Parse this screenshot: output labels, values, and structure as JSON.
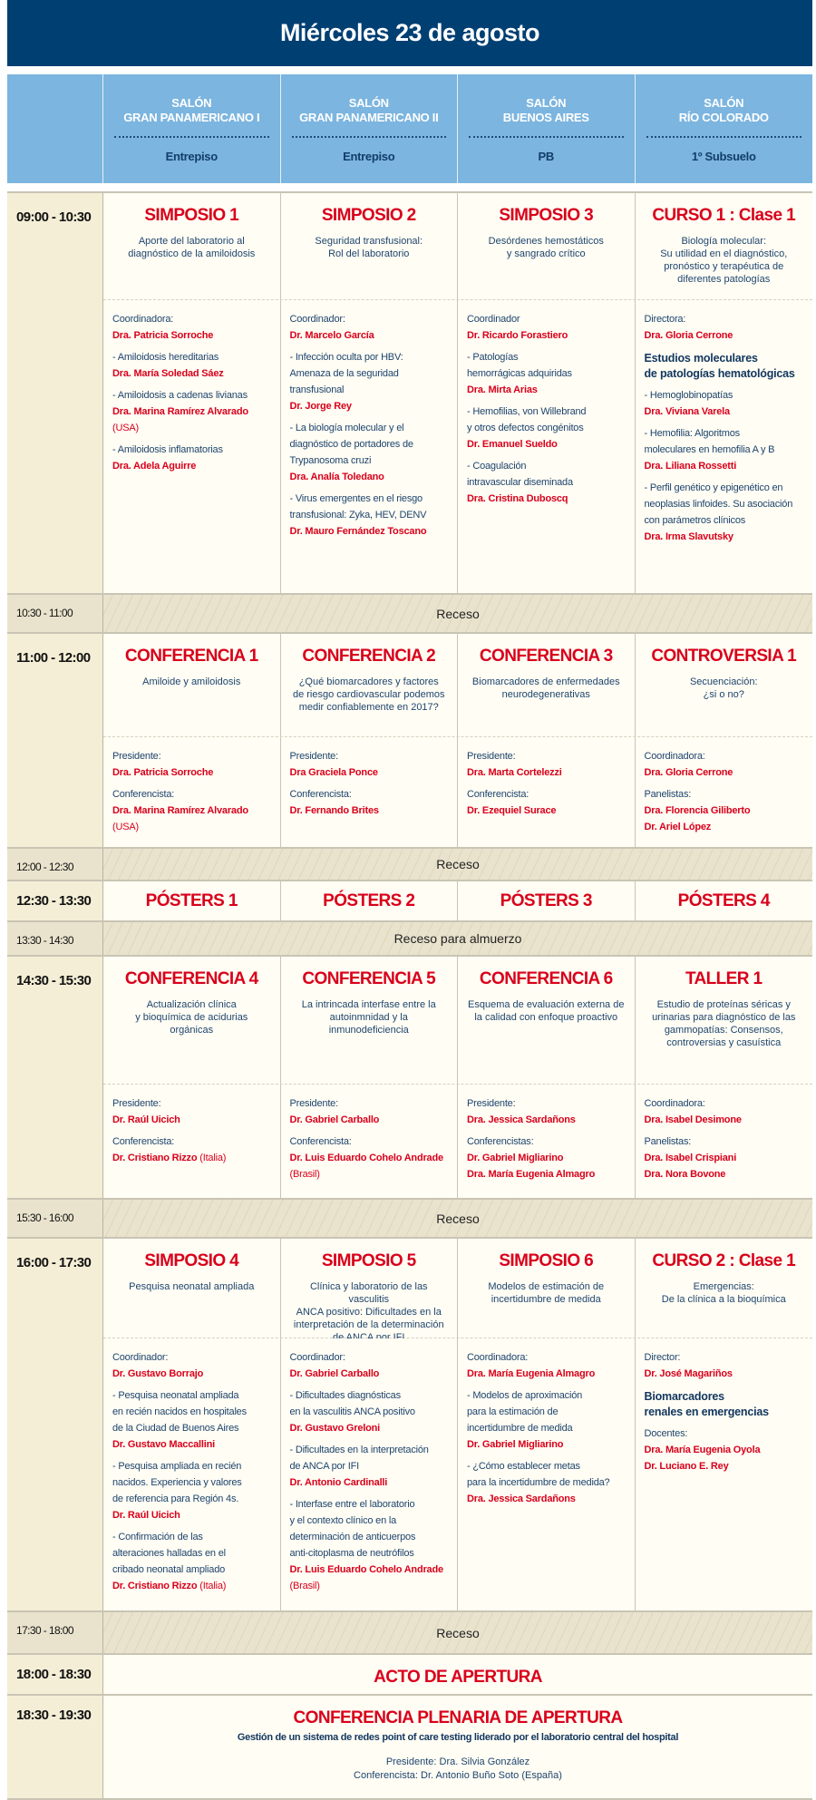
{
  "title": "Miércoles 23 de agosto",
  "rooms": [
    {
      "name": "SALÓN\nGRAN PANAMERICANO I",
      "floor": "Entrepiso"
    },
    {
      "name": "SALÓN\nGRAN PANAMERICANO II",
      "floor": "Entrepiso"
    },
    {
      "name": "SALÓN\nBUENOS AIRES",
      "floor": "PB"
    },
    {
      "name": "SALÓN\nRÍO COLORADO",
      "floor": "1º Subsuelo"
    }
  ],
  "colors": {
    "title_bar": "#003f72",
    "header": "#7cb5df",
    "accent_red": "#d9001b",
    "text_blue": "#1e446d",
    "time_column": "#f4eed6",
    "break": "#e9e3cd"
  },
  "rows": [
    {
      "kind": "session",
      "time": "09:00 - 10:30",
      "cells": [
        {
          "title": "SIMPOSIO 1",
          "desc": "Aporte del laboratorio al\ndiagnóstico de la amiloidosis",
          "items": [
            {
              "type": "role",
              "text": "Coordinadora:"
            },
            {
              "type": "name",
              "text": "Dra. Patricia Sorroche"
            },
            {
              "type": "topic",
              "text": "- Amiloidosis hereditarias"
            },
            {
              "type": "name",
              "text": "Dra. María Soledad Sáez"
            },
            {
              "type": "topic",
              "text": "- Amiloidosis a cadenas livianas"
            },
            {
              "type": "name",
              "text": "Dra. Marina Ramírez Alvarado"
            },
            {
              "type": "country",
              "text": "(USA)"
            },
            {
              "type": "topic",
              "text": "- Amiloidosis inflamatorias"
            },
            {
              "type": "name",
              "text": "Dra. Adela Aguirre"
            }
          ]
        },
        {
          "title": "SIMPOSIO 2",
          "desc": "Seguridad transfusional:\nRol del laboratorio",
          "items": [
            {
              "type": "role",
              "text": "Coordinador:"
            },
            {
              "type": "name",
              "text": "Dr. Marcelo García"
            },
            {
              "type": "topic",
              "text": "- Infección oculta por HBV:\nAmenaza de la seguridad\ntransfusional"
            },
            {
              "type": "name",
              "text": "Dr. Jorge Rey"
            },
            {
              "type": "topic",
              "text": "- La biología molecular y el\ndiagnóstico de portadores de\nTrypanosoma cruzi"
            },
            {
              "type": "name",
              "text": "Dra. Analía Toledano"
            },
            {
              "type": "topic",
              "text": "- Virus emergentes en el riesgo\ntransfusional: Zyka, HEV, DENV"
            },
            {
              "type": "name",
              "text": "Dr. Mauro Fernández Toscano"
            }
          ]
        },
        {
          "title": "SIMPOSIO 3",
          "desc": "Desórdenes hemostáticos\ny sangrado crítico",
          "items": [
            {
              "type": "role",
              "text": "Coordinador"
            },
            {
              "type": "name",
              "text": "Dr. Ricardo Forastiero"
            },
            {
              "type": "topic",
              "text": "- Patologías\nhemorrágicas adquiridas"
            },
            {
              "type": "name",
              "text": "Dra. Mirta Arias"
            },
            {
              "type": "topic",
              "text": "- Hemofilias, von Willebrand\ny otros defectos congénitos"
            },
            {
              "type": "name",
              "text": "Dr. Emanuel Sueldo"
            },
            {
              "type": "topic",
              "text": "- Coagulación\nintravascular diseminada"
            },
            {
              "type": "name",
              "text": "Dra. Cristina Duboscq"
            }
          ]
        },
        {
          "title": "CURSO 1 : Clase 1",
          "desc": "Biología molecular:\nSu utilidad en el diagnóstico,\npronóstico y terapéutica de\ndiferentes patologías",
          "items": [
            {
              "type": "role",
              "text": "Directora:"
            },
            {
              "type": "name",
              "text": "Dra. Gloria Cerrone"
            },
            {
              "type": "heading",
              "text": "Estudios moleculares\nde patologías hematológicas"
            },
            {
              "type": "topic",
              "text": "- Hemoglobinopatías"
            },
            {
              "type": "name",
              "text": "Dra. Viviana Varela"
            },
            {
              "type": "topic",
              "text": "- Hemofilia: Algoritmos\nmoleculares en hemofilia A y B"
            },
            {
              "type": "name",
              "text": "Dra. Liliana Rossetti"
            },
            {
              "type": "topic",
              "text": "- Perfil genético y epigenético en\nneoplasias linfoides. Su asociación\ncon parámetros clínicos"
            },
            {
              "type": "name",
              "text": "Dra. Irma Slavutsky"
            }
          ]
        }
      ]
    },
    {
      "kind": "break",
      "time": "10:30 - 11:00",
      "label": "Receso"
    },
    {
      "kind": "session",
      "time": "11:00 - 12:00",
      "cells": [
        {
          "title": "CONFERENCIA 1",
          "desc": "Amiloide y amiloidosis",
          "items": [
            {
              "type": "role",
              "text": "Presidente:"
            },
            {
              "type": "name",
              "text": "Dra. Patricia Sorroche"
            },
            {
              "type": "role",
              "text": "Conferencista:"
            },
            {
              "type": "name",
              "text": "Dra. Marina Ramírez Alvarado"
            },
            {
              "type": "country",
              "text": "(USA)"
            }
          ]
        },
        {
          "title": "CONFERENCIA 2",
          "desc": "¿Qué biomarcadores y factores\nde riesgo cardiovascular podemos\nmedir confiablemente en 2017?",
          "items": [
            {
              "type": "role",
              "text": "Presidente:"
            },
            {
              "type": "name",
              "text": "Dra Graciela Ponce"
            },
            {
              "type": "role",
              "text": "Conferencista:"
            },
            {
              "type": "name",
              "text": "Dr. Fernando Brites"
            }
          ]
        },
        {
          "title": "CONFERENCIA 3",
          "desc": "Biomarcadores de enfermedades\nneurodegenerativas",
          "items": [
            {
              "type": "role",
              "text": "Presidente:"
            },
            {
              "type": "name",
              "text": "Dra. Marta Cortelezzi"
            },
            {
              "type": "role",
              "text": "Conferencista:"
            },
            {
              "type": "name",
              "text": "Dr. Ezequiel Surace"
            }
          ]
        },
        {
          "title": "CONTROVERSIA 1",
          "desc": "Secuenciación:\n¿si o no?",
          "items": [
            {
              "type": "role",
              "text": "Coordinadora:"
            },
            {
              "type": "name",
              "text": "Dra. Gloria Cerrone"
            },
            {
              "type": "role",
              "text": "Panelistas:"
            },
            {
              "type": "name",
              "text": "Dra. Florencia Giliberto"
            },
            {
              "type": "name",
              "text": "Dr. Ariel López"
            }
          ]
        }
      ]
    },
    {
      "kind": "break",
      "time": "12:00 - 12:30",
      "label": "Receso"
    },
    {
      "kind": "poster",
      "time": "12:30 - 13:30",
      "titles": [
        "PÓSTERS 1",
        "PÓSTERS 2",
        "PÓSTERS 3",
        "PÓSTERS 4"
      ]
    },
    {
      "kind": "break",
      "time": "13:30 - 14:30",
      "label": "Receso para almuerzo"
    },
    {
      "kind": "session",
      "time": "14:30 - 15:30",
      "cells": [
        {
          "title": "CONFERENCIA 4",
          "desc": "Actualización clínica\ny bioquímica de acidurias orgánicas",
          "items": [
            {
              "type": "role",
              "text": "Presidente:"
            },
            {
              "type": "name",
              "text": "Dr. Raúl Uicich"
            },
            {
              "type": "role",
              "text": "Conferencista:"
            },
            {
              "type": "name",
              "text": "Dr. Cristiano Rizzo",
              "suffix": "(Italia)"
            }
          ]
        },
        {
          "title": "CONFERENCIA 5",
          "desc": "La intrincada interfase entre la\nautoinmnidad y la inmunodeficiencia",
          "items": [
            {
              "type": "role",
              "text": "Presidente:"
            },
            {
              "type": "name",
              "text": "Dr. Gabriel Carballo"
            },
            {
              "type": "role",
              "text": "Conferencista:"
            },
            {
              "type": "name",
              "text": "Dr. Luis Eduardo Cohelo Andrade"
            },
            {
              "type": "country",
              "text": "(Brasil)"
            }
          ]
        },
        {
          "title": "CONFERENCIA 6",
          "desc": "Esquema de evaluación externa de\nla calidad con enfoque proactivo",
          "items": [
            {
              "type": "role",
              "text": "Presidente:"
            },
            {
              "type": "name",
              "text": "Dra. Jessica Sardañons"
            },
            {
              "type": "role",
              "text": "Conferencistas:"
            },
            {
              "type": "name",
              "text": "Dr. Gabriel Migliarino"
            },
            {
              "type": "name",
              "text": "Dra. María Eugenia Almagro"
            }
          ]
        },
        {
          "title": "TALLER 1",
          "desc": "Estudio de proteínas séricas y\nurinarias para diagnóstico de las\ngammopatías: Consensos,\ncontroversias y casuística",
          "items": [
            {
              "type": "role",
              "text": "Coordinadora:"
            },
            {
              "type": "name",
              "text": "Dra. Isabel Desimone"
            },
            {
              "type": "role",
              "text": "Panelistas:"
            },
            {
              "type": "name",
              "text": "Dra. Isabel Crispiani"
            },
            {
              "type": "name",
              "text": "Dra. Nora Bovone"
            }
          ]
        }
      ]
    },
    {
      "kind": "break",
      "time": "15:30 - 16:00",
      "label": "Receso"
    },
    {
      "kind": "session",
      "time": "16:00 - 17:30",
      "cells": [
        {
          "title": "SIMPOSIO 4",
          "desc": "Pesquisa neonatal ampliada",
          "items": [
            {
              "type": "role",
              "text": "Coordinador:"
            },
            {
              "type": "name",
              "text": "Dr. Gustavo Borrajo"
            },
            {
              "type": "topic",
              "text": "- Pesquisa neonatal ampliada\nen recién nacidos en hospitales\nde la Ciudad de Buenos Aires"
            },
            {
              "type": "name",
              "text": "Dr. Gustavo Maccallini"
            },
            {
              "type": "topic",
              "text": "- Pesquisa ampliada en recién\nnacidos. Experiencia y valores\nde referencia para Región 4s."
            },
            {
              "type": "name",
              "text": "Dr. Raúl Uicich"
            },
            {
              "type": "topic",
              "text": "- Confirmación de las\nalteraciones halladas en el\ncribado neonatal ampliado"
            },
            {
              "type": "name",
              "text": "Dr. Cristiano Rizzo",
              "suffix": "(Italia)"
            }
          ]
        },
        {
          "title": "SIMPOSIO 5",
          "desc": "Clínica y laboratorio de las vasculitis\nANCA positivo: Dificultades en la\ninterpretación de la determinación\nde ANCA por IFI",
          "items": [
            {
              "type": "role",
              "text": "Coordinador:"
            },
            {
              "type": "name",
              "text": "Dr. Gabriel Carballo"
            },
            {
              "type": "topic",
              "text": "- Dificultades diagnósticas\nen la vasculitis ANCA positivo"
            },
            {
              "type": "name",
              "text": "Dr. Gustavo Greloni"
            },
            {
              "type": "topic",
              "text": "- Dificultades en la interpretación\nde ANCA por IFI"
            },
            {
              "type": "name",
              "text": "Dr. Antonio Cardinalli"
            },
            {
              "type": "topic",
              "text": "- Interfase entre el laboratorio\ny el contexto clínico en la\ndeterminación de anticuerpos\nanti-citoplasma de neutrófilos"
            },
            {
              "type": "name",
              "text": "Dr. Luis Eduardo Cohelo Andrade"
            },
            {
              "type": "country",
              "text": "(Brasil)"
            }
          ]
        },
        {
          "title": "SIMPOSIO 6",
          "desc": "Modelos de estimación de\nincertidumbre de medida",
          "items": [
            {
              "type": "role",
              "text": "Coordinadora:"
            },
            {
              "type": "name",
              "text": "Dra. María Eugenia Almagro"
            },
            {
              "type": "topic",
              "text": "- Modelos de aproximación\npara la estimación de\nincertidumbre de medida"
            },
            {
              "type": "name",
              "text": "Dr. Gabriel Migliarino"
            },
            {
              "type": "topic",
              "text": "- ¿Cómo establecer metas\npara la incertidumbre de medida?"
            },
            {
              "type": "name",
              "text": "Dra. Jessica Sardañons"
            }
          ]
        },
        {
          "title": "CURSO 2 : Clase 1",
          "desc": "Emergencias:\nDe la clínica a la bioquímica",
          "items": [
            {
              "type": "role",
              "text": "Director:"
            },
            {
              "type": "name",
              "text": "Dr. José Magariños"
            },
            {
              "type": "heading",
              "text": "Biomarcadores\nrenales en emergencias"
            },
            {
              "type": "role",
              "text": "Docentes:"
            },
            {
              "type": "name",
              "text": "Dra. María Eugenia Oyola"
            },
            {
              "type": "name",
              "text": "Dr. Luciano E. Rey"
            }
          ]
        }
      ]
    },
    {
      "kind": "break",
      "time": "17:30 - 18:00",
      "label": "Receso"
    },
    {
      "kind": "span",
      "time": "18:00 - 18:30",
      "title": "ACTO DE APERTURA"
    },
    {
      "kind": "span",
      "time": "18:30 - 19:30",
      "title": "CONFERENCIA PLENARIA DE APERTURA",
      "subtitle": "Gestión de un sistema de redes point of care testing liderado por el laboratorio central del hospital",
      "lines": [
        "Presidente: Dra. Silvia González",
        "Conferencista: Dr. Antonio Buño Soto (España)"
      ]
    }
  ]
}
